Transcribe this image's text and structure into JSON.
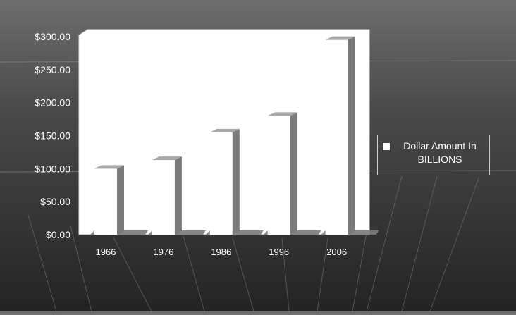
{
  "chart_data": {
    "type": "bar",
    "categories": [
      "1966",
      "1976",
      "1986",
      "1996",
      "2006"
    ],
    "series": [
      {
        "name": "Dollar Amount In BILLIONS",
        "values": [
          100,
          113,
          155,
          180,
          295
        ]
      }
    ],
    "y_tick_labels": [
      "$0.00",
      "$50.00",
      "$100.00",
      "$150.00",
      "$200.00",
      "$250.00",
      "$300.00"
    ],
    "ylim": [
      0,
      300
    ],
    "title": "",
    "xlabel": "",
    "ylabel": "",
    "legend_position": "right",
    "colors": {
      "bar_face": "#ffffff",
      "bar_side": "#7a7a7a",
      "plot_bg": "#ffffff",
      "text": "#ffffff"
    }
  }
}
